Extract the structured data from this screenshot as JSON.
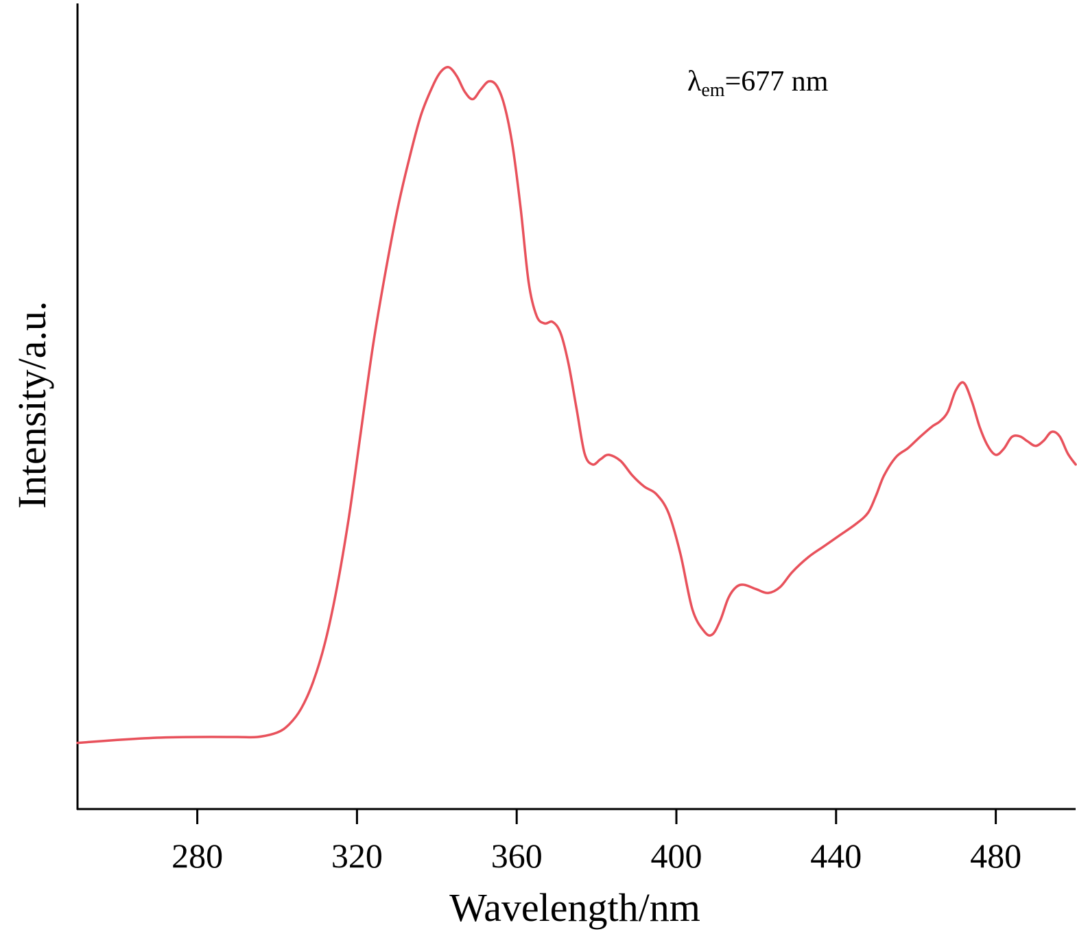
{
  "chart_data": {
    "type": "line",
    "title": "",
    "xlabel": "Wavelength/nm",
    "ylabel": "Intensity/a.u.",
    "xlim": [
      250,
      500
    ],
    "ylim": [
      0,
      1.0
    ],
    "x_ticks": [
      280,
      320,
      360,
      400,
      440,
      480
    ],
    "y_ticks_shown": false,
    "grid": false,
    "annotation": {
      "symbol": "λ",
      "subscript": "em",
      "text": "=677 nm"
    },
    "series": [
      {
        "color": "#e8515b",
        "x": [
          250,
          260,
          270,
          280,
          290,
          295,
          300,
          303,
          306,
          309,
          312,
          315,
          318,
          321,
          324,
          327,
          330,
          333,
          336,
          339,
          341,
          343,
          345,
          347,
          349,
          351,
          353,
          355,
          357,
          359,
          361,
          363,
          365,
          367,
          369,
          371,
          373,
          375,
          377,
          379,
          381,
          383,
          386,
          389,
          392,
          395,
          398,
          401,
          404,
          407,
          409,
          411,
          413,
          415,
          417,
          420,
          423,
          426,
          429,
          433,
          437,
          441,
          445,
          448,
          450,
          452,
          455,
          458,
          461,
          464,
          466,
          468,
          470,
          472,
          474,
          476,
          478,
          480,
          482,
          484,
          486,
          488,
          490,
          492,
          494,
          496,
          498,
          500
        ],
        "y": [
          0.09,
          0.094,
          0.097,
          0.098,
          0.098,
          0.098,
          0.104,
          0.115,
          0.136,
          0.172,
          0.225,
          0.3,
          0.395,
          0.51,
          0.625,
          0.72,
          0.805,
          0.875,
          0.935,
          0.975,
          0.994,
          1.0,
          0.988,
          0.967,
          0.957,
          0.97,
          0.981,
          0.975,
          0.947,
          0.893,
          0.81,
          0.71,
          0.665,
          0.655,
          0.657,
          0.642,
          0.6,
          0.54,
          0.48,
          0.465,
          0.472,
          0.478,
          0.47,
          0.45,
          0.435,
          0.425,
          0.4,
          0.345,
          0.27,
          0.24,
          0.236,
          0.255,
          0.285,
          0.3,
          0.303,
          0.297,
          0.292,
          0.3,
          0.32,
          0.34,
          0.355,
          0.37,
          0.385,
          0.4,
          0.423,
          0.45,
          0.475,
          0.487,
          0.502,
          0.516,
          0.523,
          0.536,
          0.565,
          0.575,
          0.55,
          0.515,
          0.49,
          0.478,
          0.486,
          0.502,
          0.503,
          0.496,
          0.49,
          0.497,
          0.509,
          0.503,
          0.48,
          0.465
        ]
      }
    ]
  }
}
